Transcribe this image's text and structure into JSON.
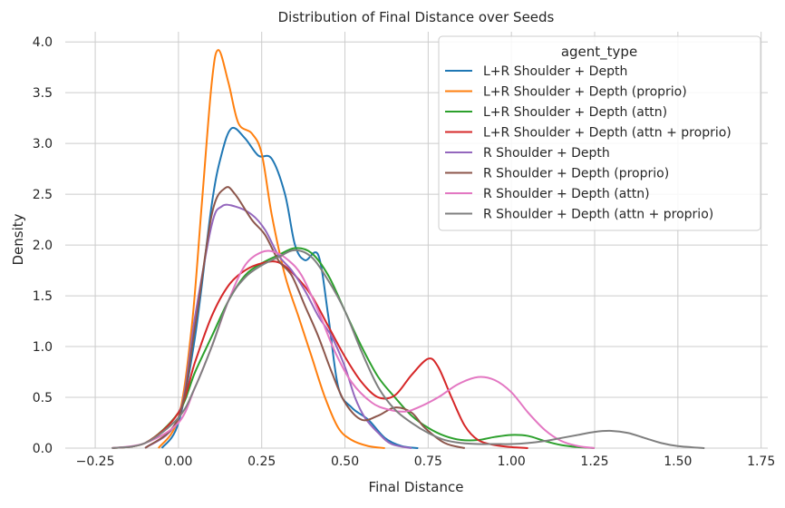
{
  "chart_data": {
    "type": "line",
    "title": "Distribution of Final Distance over Seeds",
    "xlabel": "Final Distance",
    "ylabel": "Density",
    "xlim": [
      -0.34,
      1.77
    ],
    "ylim": [
      0,
      4.1
    ],
    "xticks": [
      -0.25,
      0.0,
      0.25,
      0.5,
      0.75,
      1.0,
      1.25,
      1.5,
      1.75
    ],
    "xtick_labels": [
      "−0.25",
      "0.00",
      "0.25",
      "0.50",
      "0.75",
      "1.00",
      "1.25",
      "1.50",
      "1.75"
    ],
    "yticks": [
      0.0,
      0.5,
      1.0,
      1.5,
      2.0,
      2.5,
      3.0,
      3.5,
      4.0
    ],
    "ytick_labels": [
      "0.0",
      "0.5",
      "1.0",
      "1.5",
      "2.0",
      "2.5",
      "3.0",
      "3.5",
      "4.0"
    ],
    "grid": true,
    "legend": {
      "title": "agent_type",
      "placement": "top-right"
    },
    "series": [
      {
        "name": "L+R Shoulder + Depth",
        "color": "#1f77b4",
        "points": [
          [
            -0.05,
            0
          ],
          [
            0,
            0.25
          ],
          [
            0.05,
            1.1
          ],
          [
            0.1,
            2.4
          ],
          [
            0.13,
            2.9
          ],
          [
            0.16,
            3.15
          ],
          [
            0.2,
            3.05
          ],
          [
            0.24,
            2.88
          ],
          [
            0.28,
            2.85
          ],
          [
            0.32,
            2.5
          ],
          [
            0.35,
            2.0
          ],
          [
            0.38,
            1.85
          ],
          [
            0.42,
            1.9
          ],
          [
            0.45,
            1.3
          ],
          [
            0.48,
            0.6
          ],
          [
            0.52,
            0.4
          ],
          [
            0.57,
            0.28
          ],
          [
            0.62,
            0.1
          ],
          [
            0.67,
            0.02
          ],
          [
            0.72,
            0
          ]
        ]
      },
      {
        "name": "L+R Shoulder + Depth (proprio)",
        "color": "#ff7f0e",
        "points": [
          [
            -0.06,
            0
          ],
          [
            0,
            0.3
          ],
          [
            0.04,
            1.2
          ],
          [
            0.07,
            2.4
          ],
          [
            0.1,
            3.6
          ],
          [
            0.12,
            3.92
          ],
          [
            0.15,
            3.6
          ],
          [
            0.18,
            3.2
          ],
          [
            0.22,
            3.1
          ],
          [
            0.25,
            2.9
          ],
          [
            0.28,
            2.3
          ],
          [
            0.32,
            1.7
          ],
          [
            0.36,
            1.3
          ],
          [
            0.4,
            0.9
          ],
          [
            0.44,
            0.5
          ],
          [
            0.48,
            0.2
          ],
          [
            0.52,
            0.08
          ],
          [
            0.57,
            0.02
          ],
          [
            0.62,
            0
          ]
        ]
      },
      {
        "name": "L+R Shoulder + Depth (attn)",
        "color": "#2ca02c",
        "points": [
          [
            -0.2,
            0
          ],
          [
            -0.1,
            0.05
          ],
          [
            0,
            0.35
          ],
          [
            0.05,
            0.75
          ],
          [
            0.1,
            1.1
          ],
          [
            0.15,
            1.45
          ],
          [
            0.2,
            1.7
          ],
          [
            0.25,
            1.82
          ],
          [
            0.3,
            1.9
          ],
          [
            0.35,
            1.97
          ],
          [
            0.4,
            1.92
          ],
          [
            0.45,
            1.7
          ],
          [
            0.5,
            1.35
          ],
          [
            0.55,
            1.0
          ],
          [
            0.6,
            0.7
          ],
          [
            0.65,
            0.5
          ],
          [
            0.7,
            0.32
          ],
          [
            0.75,
            0.2
          ],
          [
            0.8,
            0.12
          ],
          [
            0.85,
            0.08
          ],
          [
            0.9,
            0.08
          ],
          [
            0.95,
            0.11
          ],
          [
            1.0,
            0.13
          ],
          [
            1.05,
            0.12
          ],
          [
            1.1,
            0.07
          ],
          [
            1.15,
            0.03
          ],
          [
            1.2,
            0.01
          ],
          [
            1.25,
            0
          ]
        ]
      },
      {
        "name": "L+R Shoulder + Depth (attn + proprio)",
        "color": "#d62728",
        "points": [
          [
            -0.2,
            0
          ],
          [
            -0.1,
            0.05
          ],
          [
            0,
            0.35
          ],
          [
            0.05,
            0.85
          ],
          [
            0.1,
            1.3
          ],
          [
            0.15,
            1.6
          ],
          [
            0.2,
            1.75
          ],
          [
            0.25,
            1.82
          ],
          [
            0.3,
            1.83
          ],
          [
            0.35,
            1.7
          ],
          [
            0.4,
            1.5
          ],
          [
            0.45,
            1.2
          ],
          [
            0.5,
            0.9
          ],
          [
            0.55,
            0.65
          ],
          [
            0.6,
            0.5
          ],
          [
            0.65,
            0.52
          ],
          [
            0.7,
            0.72
          ],
          [
            0.75,
            0.88
          ],
          [
            0.78,
            0.8
          ],
          [
            0.82,
            0.5
          ],
          [
            0.86,
            0.22
          ],
          [
            0.9,
            0.08
          ],
          [
            0.95,
            0.03
          ],
          [
            1.0,
            0.01
          ],
          [
            1.05,
            0
          ]
        ]
      },
      {
        "name": "R Shoulder + Depth",
        "color": "#9467bd",
        "points": [
          [
            -0.1,
            0
          ],
          [
            0,
            0.3
          ],
          [
            0.05,
            1.3
          ],
          [
            0.1,
            2.2
          ],
          [
            0.13,
            2.38
          ],
          [
            0.17,
            2.38
          ],
          [
            0.22,
            2.3
          ],
          [
            0.26,
            2.15
          ],
          [
            0.3,
            1.9
          ],
          [
            0.34,
            1.75
          ],
          [
            0.38,
            1.55
          ],
          [
            0.42,
            1.3
          ],
          [
            0.46,
            1.1
          ],
          [
            0.5,
            0.8
          ],
          [
            0.53,
            0.5
          ],
          [
            0.56,
            0.3
          ],
          [
            0.6,
            0.15
          ],
          [
            0.64,
            0.04
          ],
          [
            0.7,
            0
          ]
        ]
      },
      {
        "name": "R Shoulder + Depth (proprio)",
        "color": "#8c564b",
        "points": [
          [
            -0.1,
            0
          ],
          [
            0,
            0.3
          ],
          [
            0.05,
            1.2
          ],
          [
            0.1,
            2.3
          ],
          [
            0.14,
            2.56
          ],
          [
            0.17,
            2.5
          ],
          [
            0.22,
            2.25
          ],
          [
            0.26,
            2.1
          ],
          [
            0.3,
            1.85
          ],
          [
            0.34,
            1.7
          ],
          [
            0.38,
            1.4
          ],
          [
            0.42,
            1.1
          ],
          [
            0.46,
            0.75
          ],
          [
            0.5,
            0.45
          ],
          [
            0.55,
            0.28
          ],
          [
            0.6,
            0.32
          ],
          [
            0.65,
            0.4
          ],
          [
            0.7,
            0.35
          ],
          [
            0.74,
            0.2
          ],
          [
            0.8,
            0.05
          ],
          [
            0.86,
            0
          ]
        ]
      },
      {
        "name": "R Shoulder + Depth (attn)",
        "color": "#e377c2",
        "points": [
          [
            -0.2,
            0
          ],
          [
            -0.1,
            0.05
          ],
          [
            0,
            0.25
          ],
          [
            0.05,
            0.6
          ],
          [
            0.1,
            1.0
          ],
          [
            0.15,
            1.45
          ],
          [
            0.2,
            1.8
          ],
          [
            0.25,
            1.93
          ],
          [
            0.29,
            1.93
          ],
          [
            0.33,
            1.85
          ],
          [
            0.37,
            1.7
          ],
          [
            0.42,
            1.35
          ],
          [
            0.47,
            0.95
          ],
          [
            0.52,
            0.65
          ],
          [
            0.58,
            0.45
          ],
          [
            0.63,
            0.38
          ],
          [
            0.68,
            0.36
          ],
          [
            0.72,
            0.4
          ],
          [
            0.78,
            0.5
          ],
          [
            0.84,
            0.63
          ],
          [
            0.9,
            0.7
          ],
          [
            0.95,
            0.67
          ],
          [
            1.0,
            0.55
          ],
          [
            1.05,
            0.35
          ],
          [
            1.1,
            0.18
          ],
          [
            1.15,
            0.07
          ],
          [
            1.2,
            0.02
          ],
          [
            1.25,
            0
          ]
        ]
      },
      {
        "name": "R Shoulder + Depth (attn + proprio)",
        "color": "#7f7f7f",
        "points": [
          [
            -0.2,
            0
          ],
          [
            -0.1,
            0.05
          ],
          [
            0,
            0.3
          ],
          [
            0.05,
            0.6
          ],
          [
            0.1,
            1.0
          ],
          [
            0.15,
            1.45
          ],
          [
            0.2,
            1.68
          ],
          [
            0.25,
            1.8
          ],
          [
            0.3,
            1.88
          ],
          [
            0.35,
            1.95
          ],
          [
            0.4,
            1.88
          ],
          [
            0.45,
            1.65
          ],
          [
            0.5,
            1.35
          ],
          [
            0.55,
            0.95
          ],
          [
            0.6,
            0.6
          ],
          [
            0.65,
            0.38
          ],
          [
            0.7,
            0.25
          ],
          [
            0.75,
            0.15
          ],
          [
            0.8,
            0.08
          ],
          [
            0.85,
            0.05
          ],
          [
            0.9,
            0.04
          ],
          [
            0.95,
            0.04
          ],
          [
            1.0,
            0.04
          ],
          [
            1.05,
            0.05
          ],
          [
            1.1,
            0.07
          ],
          [
            1.15,
            0.1
          ],
          [
            1.2,
            0.13
          ],
          [
            1.25,
            0.16
          ],
          [
            1.3,
            0.17
          ],
          [
            1.35,
            0.15
          ],
          [
            1.4,
            0.1
          ],
          [
            1.45,
            0.05
          ],
          [
            1.5,
            0.02
          ],
          [
            1.58,
            0
          ]
        ]
      }
    ]
  }
}
